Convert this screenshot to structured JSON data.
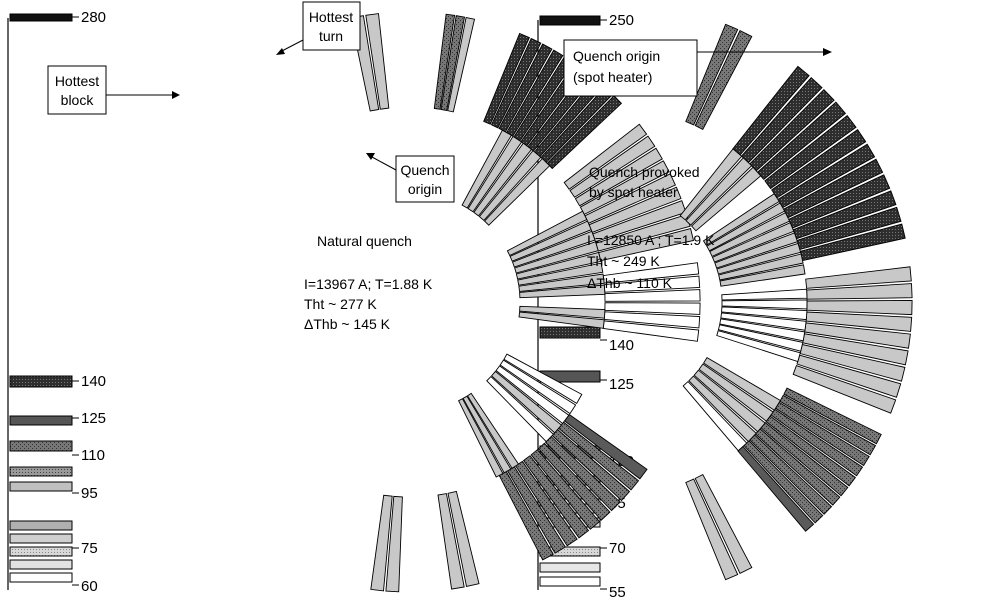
{
  "left_panel": {
    "scale": {
      "top": "280",
      "ticks": [
        "140",
        "125",
        "110",
        "95",
        "75",
        "60"
      ]
    },
    "callouts": {
      "hottest_turn": [
        "Hottest",
        "turn"
      ],
      "hottest_block": [
        "Hottest",
        "block"
      ],
      "quench_origin": [
        "Quench",
        "origin"
      ]
    },
    "annotation": {
      "title": "Natural quench",
      "current_temp": "I=13967 A; T=1.88 K",
      "tht": "Tht ~ 277 K",
      "dthb": "ΔThb ~ 145 K"
    }
  },
  "right_panel": {
    "scale": {
      "top": "250",
      "ticks": [
        "140",
        "125",
        "100",
        "85",
        "70",
        "55"
      ]
    },
    "callouts": {
      "quench_origin": [
        "Quench origin",
        "(spot heater)"
      ]
    },
    "annotation": {
      "title_line1": "Quench provoked",
      "title_line2": "by spot heater",
      "current_temp": "I =12850 A ; T=1.9 K",
      "tht": "Tht ~ 249 K",
      "dthb": "ΔThb ~ 110 K"
    }
  },
  "colors": {
    "white": "#ffffff",
    "very_light": "#e4e4e4",
    "light": "#c8c8c8",
    "medium_light": "#a8a8a8",
    "medium": "#8e8e8e",
    "dark": "#5a5a5a",
    "black": "#1a1a1a",
    "stroke": "#000000"
  }
}
